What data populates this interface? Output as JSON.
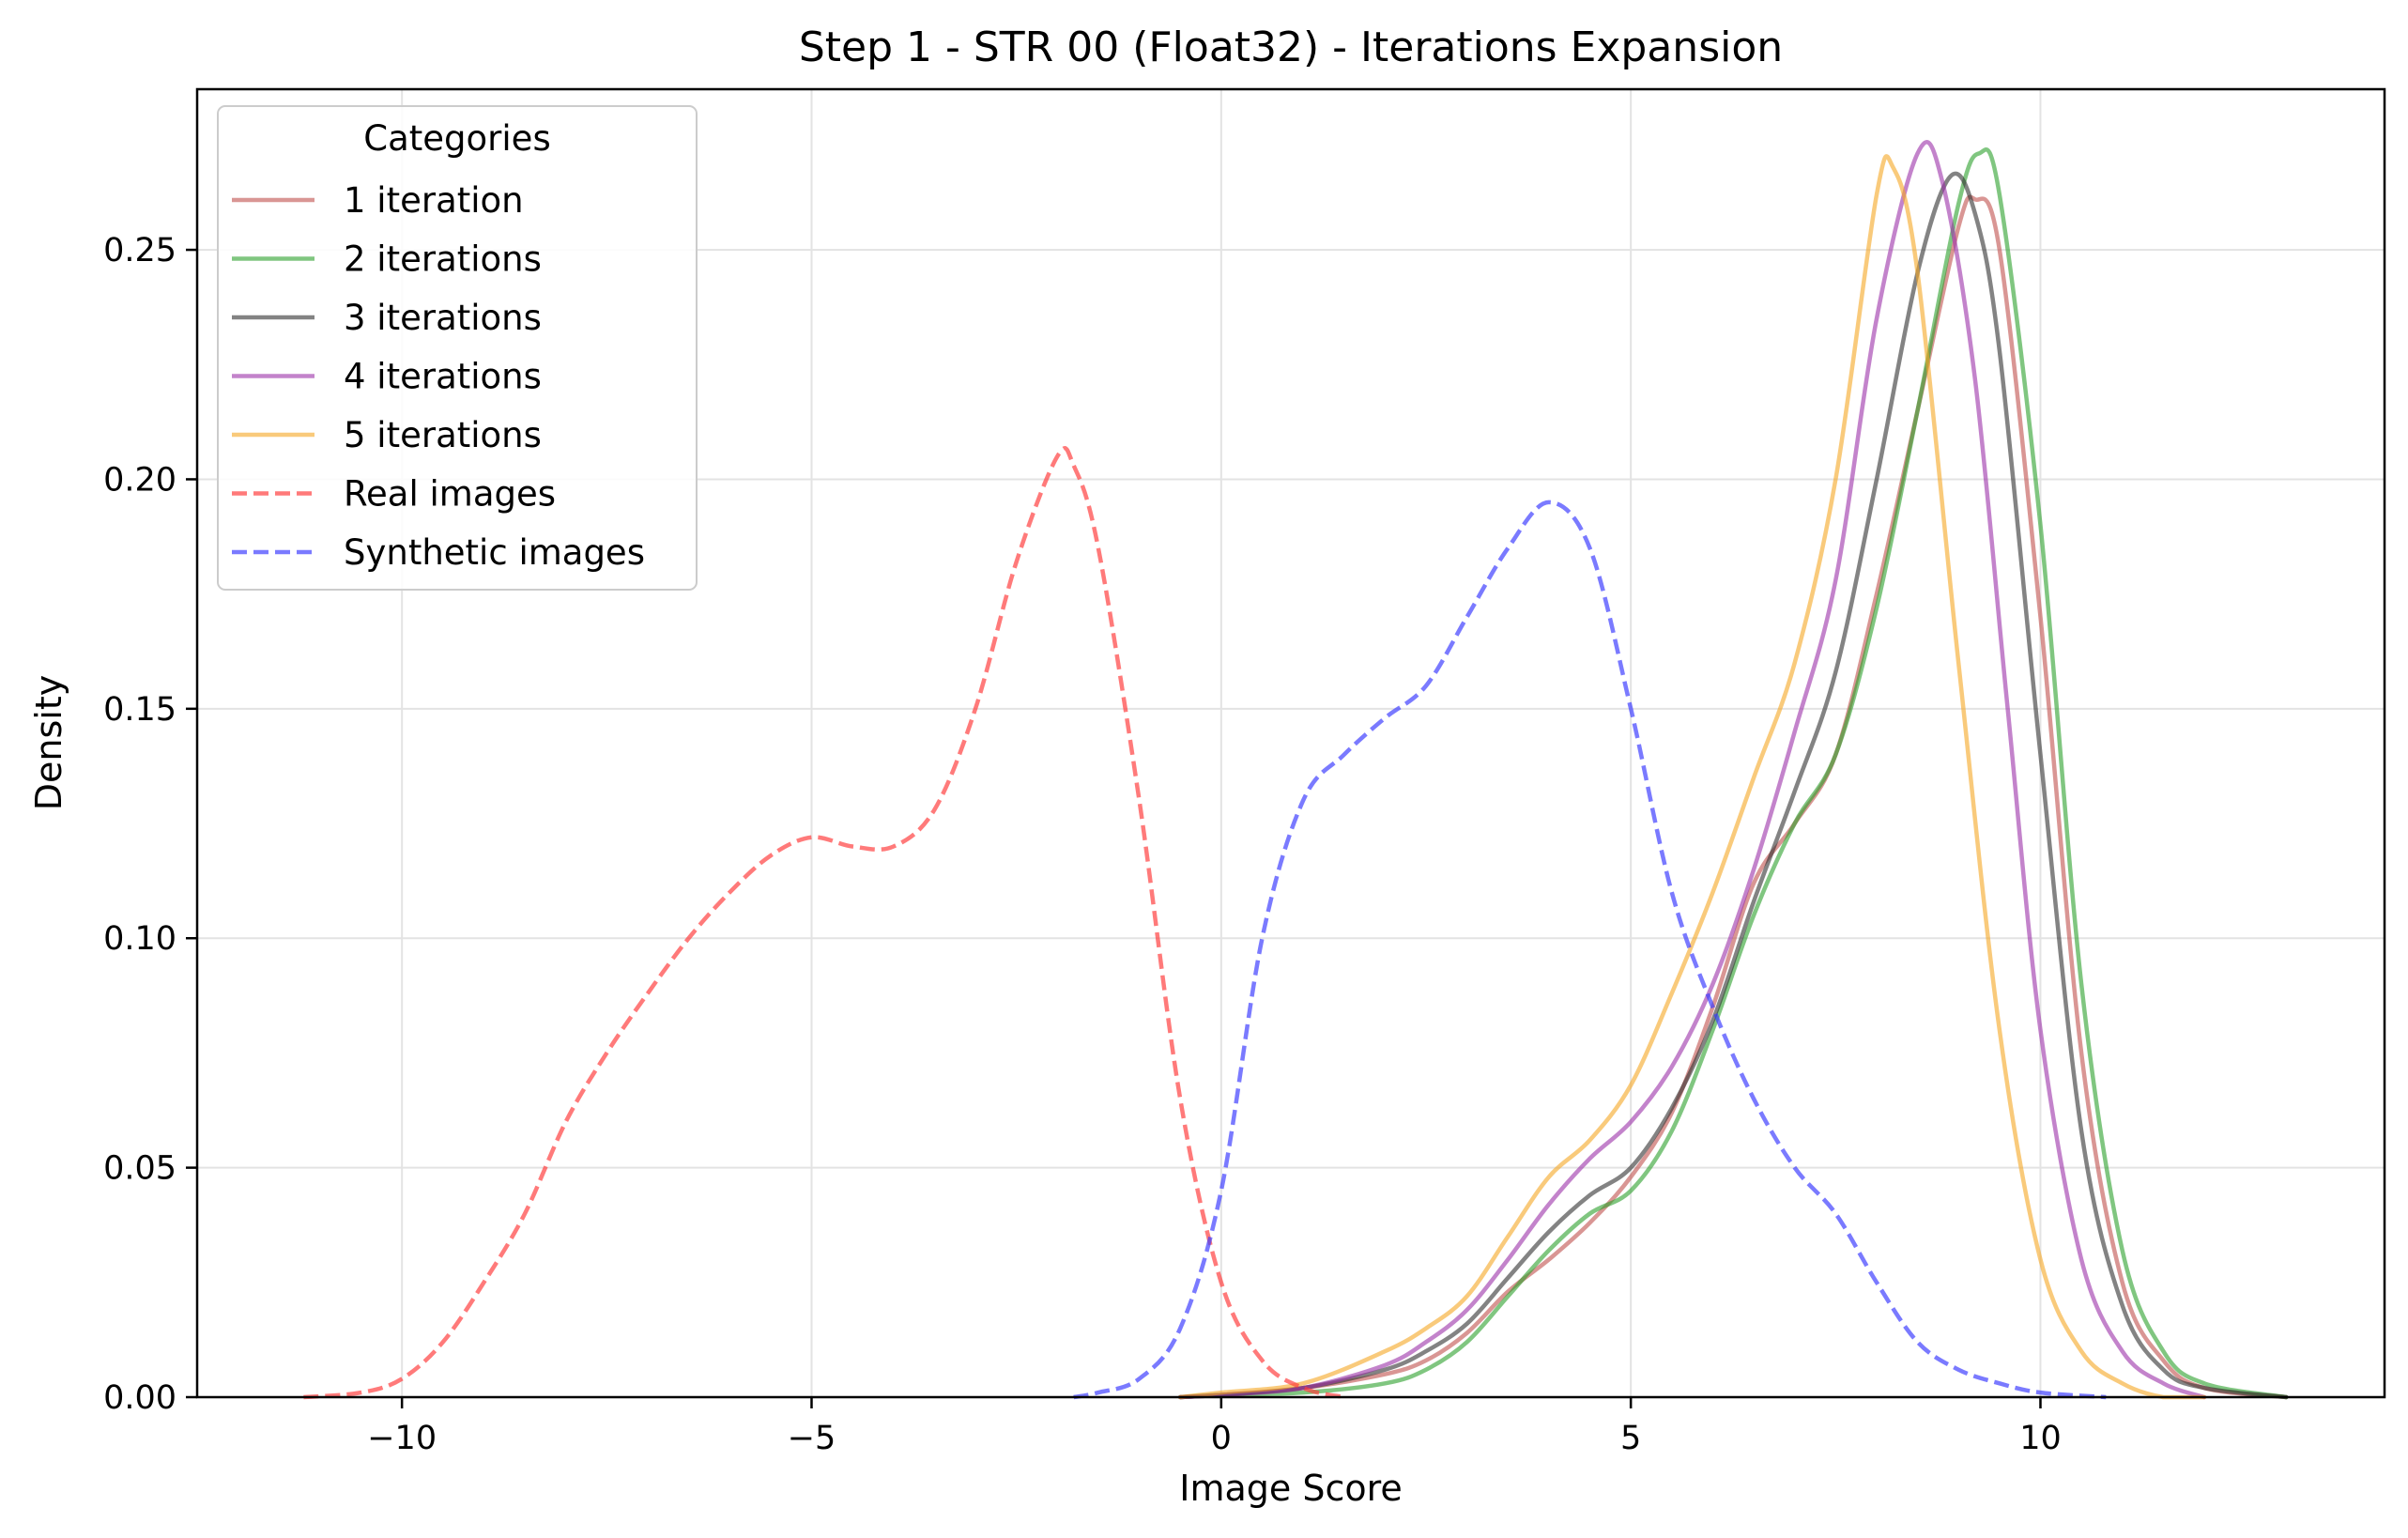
{
  "chart_data": {
    "type": "line",
    "title": "Step 1 - STR 00 (Float32) - Iterations Expansion",
    "xlabel": "Image Score",
    "ylabel": "Density",
    "xlim": [
      -12.5,
      14.2
    ],
    "ylim": [
      0,
      0.285
    ],
    "xticks": [
      -10,
      -5,
      0,
      5,
      10
    ],
    "xtick_labels": [
      "−10",
      "−5",
      "0",
      "5",
      "10"
    ],
    "yticks": [
      0,
      0.05,
      0.1,
      0.15,
      0.2,
      0.25
    ],
    "ytick_labels": [
      "0.00",
      "0.05",
      "0.10",
      "0.15",
      "0.20",
      "0.25"
    ],
    "grid": true,
    "legend": {
      "title": "Categories",
      "placement": "top-left"
    },
    "series": [
      {
        "name": "1 iteration",
        "color": "#c0504d",
        "dashed": false,
        "points": [
          [
            -0.5,
            0
          ],
          [
            0,
            0.0005
          ],
          [
            1,
            0.002
          ],
          [
            2,
            0.005
          ],
          [
            2.5,
            0.008
          ],
          [
            3,
            0.014
          ],
          [
            3.5,
            0.023
          ],
          [
            4,
            0.03
          ],
          [
            4.5,
            0.038
          ],
          [
            5,
            0.048
          ],
          [
            5.5,
            0.062
          ],
          [
            6,
            0.085
          ],
          [
            6.5,
            0.112
          ],
          [
            7,
            0.125
          ],
          [
            7.5,
            0.14
          ],
          [
            8,
            0.175
          ],
          [
            8.5,
            0.215
          ],
          [
            9,
            0.255
          ],
          [
            9.2,
            0.261
          ],
          [
            9.5,
            0.25
          ],
          [
            10,
            0.17
          ],
          [
            10.5,
            0.075
          ],
          [
            11,
            0.025
          ],
          [
            11.5,
            0.008
          ],
          [
            12,
            0.002
          ],
          [
            13,
            0
          ]
        ]
      },
      {
        "name": "2 iterations",
        "color": "#2ca02c",
        "dashed": false,
        "points": [
          [
            -0.5,
            0
          ],
          [
            0,
            0.0005
          ],
          [
            1,
            0.001
          ],
          [
            2,
            0.003
          ],
          [
            2.5,
            0.006
          ],
          [
            3,
            0.012
          ],
          [
            3.5,
            0.022
          ],
          [
            4,
            0.032
          ],
          [
            4.5,
            0.04
          ],
          [
            5,
            0.045
          ],
          [
            5.5,
            0.058
          ],
          [
            6,
            0.08
          ],
          [
            6.5,
            0.105
          ],
          [
            7,
            0.125
          ],
          [
            7.5,
            0.14
          ],
          [
            8,
            0.172
          ],
          [
            8.5,
            0.215
          ],
          [
            9,
            0.26
          ],
          [
            9.25,
            0.271
          ],
          [
            9.5,
            0.262
          ],
          [
            10,
            0.19
          ],
          [
            10.5,
            0.09
          ],
          [
            11,
            0.032
          ],
          [
            11.5,
            0.01
          ],
          [
            12,
            0.003
          ],
          [
            13,
            0
          ]
        ]
      },
      {
        "name": "3 iterations",
        "color": "#303030",
        "dashed": false,
        "points": [
          [
            -0.5,
            0
          ],
          [
            0,
            0.0005
          ],
          [
            1,
            0.002
          ],
          [
            2,
            0.006
          ],
          [
            2.5,
            0.01
          ],
          [
            3,
            0.016
          ],
          [
            3.5,
            0.026
          ],
          [
            4,
            0.036
          ],
          [
            4.5,
            0.044
          ],
          [
            5,
            0.05
          ],
          [
            5.5,
            0.063
          ],
          [
            6,
            0.082
          ],
          [
            6.5,
            0.108
          ],
          [
            7,
            0.132
          ],
          [
            7.5,
            0.158
          ],
          [
            8,
            0.2
          ],
          [
            8.5,
            0.245
          ],
          [
            8.9,
            0.266
          ],
          [
            9.2,
            0.258
          ],
          [
            9.5,
            0.228
          ],
          [
            10,
            0.14
          ],
          [
            10.5,
            0.058
          ],
          [
            11,
            0.02
          ],
          [
            11.5,
            0.006
          ],
          [
            12,
            0.002
          ],
          [
            13,
            0
          ]
        ]
      },
      {
        "name": "4 iterations",
        "color": "#9b30a8",
        "dashed": false,
        "points": [
          [
            -0.5,
            0
          ],
          [
            0,
            0.0005
          ],
          [
            1,
            0.002
          ],
          [
            2,
            0.007
          ],
          [
            2.5,
            0.012
          ],
          [
            3,
            0.019
          ],
          [
            3.5,
            0.03
          ],
          [
            4,
            0.042
          ],
          [
            4.5,
            0.052
          ],
          [
            5,
            0.06
          ],
          [
            5.5,
            0.072
          ],
          [
            6,
            0.09
          ],
          [
            6.5,
            0.115
          ],
          [
            7,
            0.145
          ],
          [
            7.5,
            0.178
          ],
          [
            8,
            0.235
          ],
          [
            8.5,
            0.271
          ],
          [
            8.8,
            0.265
          ],
          [
            9.2,
            0.222
          ],
          [
            9.6,
            0.15
          ],
          [
            10,
            0.08
          ],
          [
            10.5,
            0.03
          ],
          [
            11,
            0.01
          ],
          [
            11.5,
            0.003
          ],
          [
            12,
            0
          ]
        ]
      },
      {
        "name": "5 iterations",
        "color": "#f5a623",
        "dashed": false,
        "points": [
          [
            -0.5,
            0
          ],
          [
            0,
            0.001
          ],
          [
            1,
            0.003
          ],
          [
            2,
            0.01
          ],
          [
            2.5,
            0.015
          ],
          [
            3,
            0.022
          ],
          [
            3.5,
            0.035
          ],
          [
            4,
            0.048
          ],
          [
            4.5,
            0.056
          ],
          [
            5,
            0.068
          ],
          [
            5.5,
            0.088
          ],
          [
            6,
            0.11
          ],
          [
            6.5,
            0.135
          ],
          [
            7,
            0.16
          ],
          [
            7.5,
            0.2
          ],
          [
            8,
            0.262
          ],
          [
            8.2,
            0.268
          ],
          [
            8.5,
            0.245
          ],
          [
            9,
            0.16
          ],
          [
            9.5,
            0.08
          ],
          [
            10,
            0.03
          ],
          [
            10.5,
            0.01
          ],
          [
            11,
            0.003
          ],
          [
            11.5,
            0
          ],
          [
            12,
            0
          ]
        ]
      },
      {
        "name": "Real images",
        "color": "#ff3b3b",
        "dashed": true,
        "points": [
          [
            -11.2,
            0
          ],
          [
            -10.5,
            0.001
          ],
          [
            -10,
            0.004
          ],
          [
            -9.5,
            0.012
          ],
          [
            -9,
            0.025
          ],
          [
            -8.5,
            0.04
          ],
          [
            -8,
            0.06
          ],
          [
            -7.5,
            0.075
          ],
          [
            -7,
            0.088
          ],
          [
            -6.5,
            0.1
          ],
          [
            -6,
            0.11
          ],
          [
            -5.5,
            0.118
          ],
          [
            -5,
            0.122
          ],
          [
            -4.5,
            0.12
          ],
          [
            -4,
            0.12
          ],
          [
            -3.5,
            0.128
          ],
          [
            -3,
            0.15
          ],
          [
            -2.5,
            0.182
          ],
          [
            -2,
            0.205
          ],
          [
            -1.8,
            0.203
          ],
          [
            -1.5,
            0.185
          ],
          [
            -1,
            0.13
          ],
          [
            -0.5,
            0.065
          ],
          [
            0,
            0.025
          ],
          [
            0.5,
            0.008
          ],
          [
            1,
            0.002
          ],
          [
            1.5,
            0
          ]
        ]
      },
      {
        "name": "Synthetic images",
        "color": "#3b3bff",
        "dashed": true,
        "points": [
          [
            -1.8,
            0
          ],
          [
            -1.5,
            0.001
          ],
          [
            -1,
            0.004
          ],
          [
            -0.5,
            0.015
          ],
          [
            0,
            0.045
          ],
          [
            0.5,
            0.1
          ],
          [
            1,
            0.13
          ],
          [
            1.5,
            0.14
          ],
          [
            2,
            0.148
          ],
          [
            2.5,
            0.155
          ],
          [
            3,
            0.17
          ],
          [
            3.5,
            0.185
          ],
          [
            4,
            0.195
          ],
          [
            4.5,
            0.185
          ],
          [
            5,
            0.15
          ],
          [
            5.5,
            0.11
          ],
          [
            6,
            0.085
          ],
          [
            6.5,
            0.065
          ],
          [
            7,
            0.05
          ],
          [
            7.5,
            0.04
          ],
          [
            8,
            0.025
          ],
          [
            8.5,
            0.012
          ],
          [
            9,
            0.006
          ],
          [
            9.5,
            0.003
          ],
          [
            10,
            0.001
          ],
          [
            10.8,
            0
          ]
        ]
      }
    ]
  }
}
